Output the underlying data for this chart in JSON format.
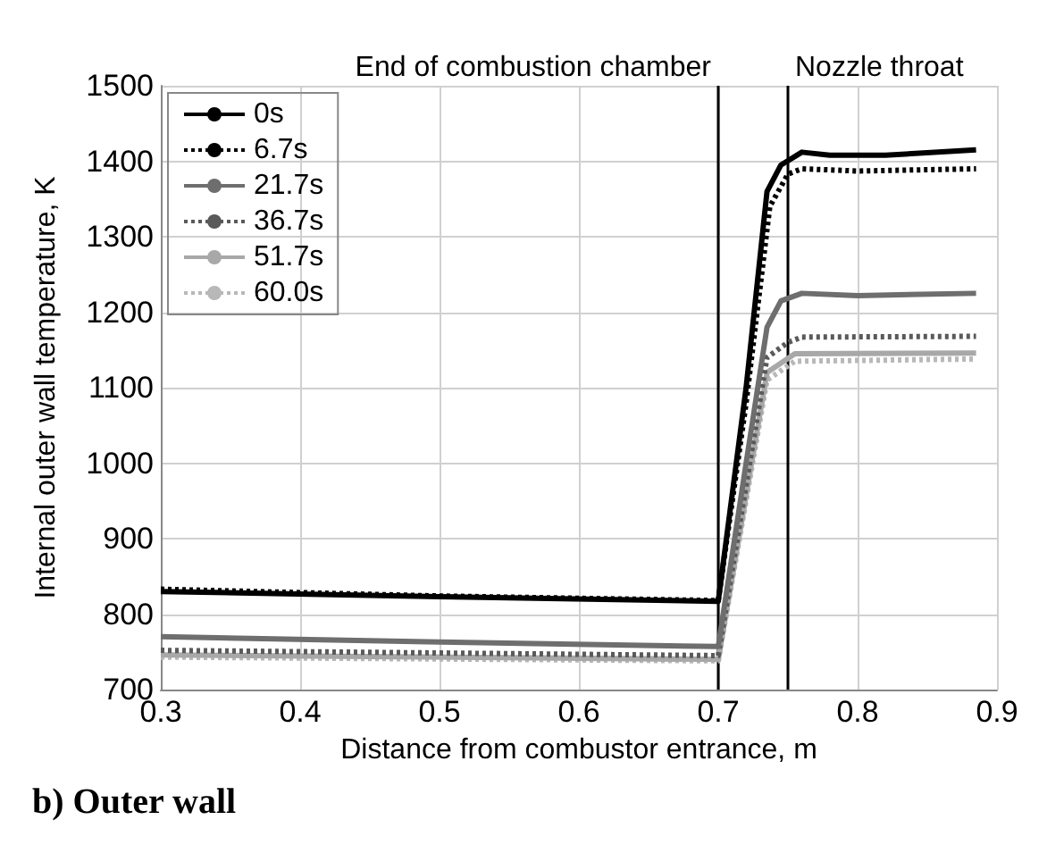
{
  "chart_data": {
    "type": "line",
    "xlabel": "Distance from combustor entrance, m",
    "ylabel": "Internal outer wall temperature, K",
    "xlim": [
      0.3,
      0.9
    ],
    "xticks": [
      0.3,
      0.4,
      0.5,
      0.6,
      0.7,
      0.8,
      0.9
    ],
    "ylim": [
      700,
      1500
    ],
    "yticks": [
      700,
      800,
      900,
      1000,
      1100,
      1200,
      1300,
      1400,
      1500
    ],
    "grid": true,
    "legend": "top left",
    "marker": "none",
    "series": [
      {
        "name": "0s",
        "color": "#000000",
        "line_style": "solid",
        "x": [
          0.3,
          0.5,
          0.7,
          0.72,
          0.735,
          0.745,
          0.76,
          0.78,
          0.82,
          0.885
        ],
        "values": [
          830,
          823,
          817,
          1100,
          1360,
          1395,
          1412,
          1408,
          1408,
          1415
        ]
      },
      {
        "name": "6.7s",
        "color": "#000000",
        "line_style": "dotted",
        "x": [
          0.3,
          0.5,
          0.7,
          0.72,
          0.737,
          0.75,
          0.76,
          0.8,
          0.885
        ],
        "values": [
          833,
          824,
          818,
          1080,
          1340,
          1383,
          1390,
          1387,
          1390
        ]
      },
      {
        "name": "21.7s",
        "color": "#6e6e6e",
        "line_style": "solid",
        "x": [
          0.3,
          0.5,
          0.7,
          0.72,
          0.735,
          0.745,
          0.76,
          0.8,
          0.885
        ],
        "values": [
          770,
          763,
          757,
          1000,
          1180,
          1215,
          1225,
          1222,
          1225
        ]
      },
      {
        "name": "36.7s",
        "color": "#5a5a5a",
        "line_style": "dotted",
        "x": [
          0.3,
          0.7,
          0.735,
          0.75,
          0.76,
          0.885
        ],
        "values": [
          752,
          745,
          1140,
          1160,
          1167,
          1168
        ]
      },
      {
        "name": "51.7s",
        "color": "#a8a8a8",
        "line_style": "solid",
        "x": [
          0.3,
          0.7,
          0.735,
          0.755,
          0.885
        ],
        "values": [
          746,
          740,
          1120,
          1145,
          1146
        ]
      },
      {
        "name": "60.0s",
        "color": "#b8b8b8",
        "line_style": "dotted",
        "x": [
          0.3,
          0.7,
          0.735,
          0.755,
          0.885
        ],
        "values": [
          743,
          738,
          1110,
          1135,
          1138
        ]
      }
    ],
    "ref_lines": [
      {
        "axis": "x",
        "value": 0.7,
        "label": "End of combustion chamber",
        "color": "#000000"
      },
      {
        "axis": "x",
        "value": 0.75,
        "label": "Nozzle throat",
        "color": "#000000"
      }
    ],
    "annotations": [
      "b) Outer wall"
    ]
  }
}
